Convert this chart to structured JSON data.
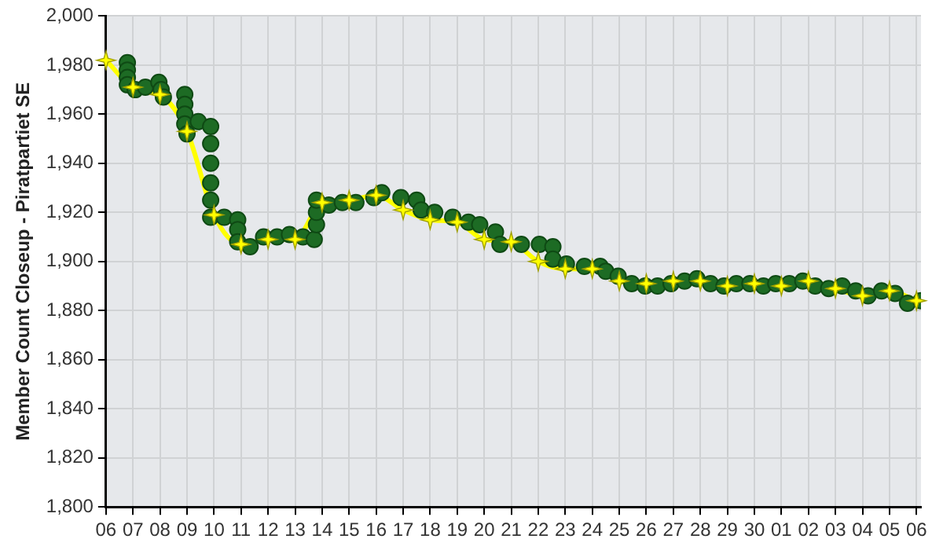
{
  "chart_data": {
    "type": "line",
    "ylabel": "Member Count Closeup - Piratpartiet SE",
    "xlim": [
      "--06-06",
      "--07-06T04:00"
    ],
    "xticks": [
      {
        "value": "--06-06",
        "label": "06"
      },
      {
        "value": "--06-07",
        "label": "07"
      },
      {
        "value": "--06-08",
        "label": "08"
      },
      {
        "value": "--06-09",
        "label": "09"
      },
      {
        "value": "--06-10",
        "label": "10"
      },
      {
        "value": "--06-11",
        "label": "11"
      },
      {
        "value": "--06-12",
        "label": "12"
      },
      {
        "value": "--06-13",
        "label": "13"
      },
      {
        "value": "--06-14",
        "label": "14"
      },
      {
        "value": "--06-15",
        "label": "15"
      },
      {
        "value": "--06-16",
        "label": "16"
      },
      {
        "value": "--06-17",
        "label": "17"
      },
      {
        "value": "--06-18",
        "label": "18"
      },
      {
        "value": "--06-19",
        "label": "19"
      },
      {
        "value": "--06-20",
        "label": "20"
      },
      {
        "value": "--06-21",
        "label": "21"
      },
      {
        "value": "--06-22",
        "label": "22"
      },
      {
        "value": "--06-23",
        "label": "23"
      },
      {
        "value": "--06-24",
        "label": "24"
      },
      {
        "value": "--06-25",
        "label": "25"
      },
      {
        "value": "--06-26",
        "label": "26"
      },
      {
        "value": "--06-27",
        "label": "27"
      },
      {
        "value": "--06-28",
        "label": "28"
      },
      {
        "value": "--06-29",
        "label": "29"
      },
      {
        "value": "--06-30",
        "label": "30"
      },
      {
        "value": "--07-01",
        "label": "01"
      },
      {
        "value": "--07-02",
        "label": "02"
      },
      {
        "value": "--07-03",
        "label": "03"
      },
      {
        "value": "--07-04",
        "label": "04"
      },
      {
        "value": "--07-05",
        "label": "05"
      },
      {
        "value": "--07-06",
        "label": "06"
      }
    ],
    "ylim": [
      1800,
      2000
    ],
    "yticks": [
      {
        "value": 1800,
        "label": "1,800"
      },
      {
        "value": 1820,
        "label": "1,820"
      },
      {
        "value": 1840,
        "label": "1,840"
      },
      {
        "value": 1860,
        "label": "1,860"
      },
      {
        "value": 1880,
        "label": "1,880"
      },
      {
        "value": 1900,
        "label": "1,900"
      },
      {
        "value": 1920,
        "label": "1,920"
      },
      {
        "value": 1940,
        "label": "1,940"
      },
      {
        "value": 1960,
        "label": "1,960"
      },
      {
        "value": 1980,
        "label": "1,980"
      },
      {
        "value": 2000,
        "label": "2,000"
      }
    ],
    "grid": true,
    "series": [
      {
        "type": "scatter",
        "marker": "circle",
        "color": "#1d6b24",
        "x": [
          "--06-06T19:00",
          "--06-06T19:00",
          "--06-06T19:00",
          "--06-06T19:00",
          "--06-07T02:00",
          "--06-07T11:00",
          "--06-07T23:00",
          "--06-08T01:00",
          "--06-08T03:00",
          "--06-08T22:00",
          "--06-08T22:00",
          "--06-08T22:00",
          "--06-08T22:00",
          "--06-09T00:00",
          "--06-09T10:00",
          "--06-09T21:00",
          "--06-09T21:00",
          "--06-09T21:00",
          "--06-09T21:00",
          "--06-09T21:00",
          "--06-09T21:00",
          "--06-10T09:00",
          "--06-10T21:00",
          "--06-10T21:00",
          "--06-10T21:00",
          "--06-11T08:00",
          "--06-11T20:00",
          "--06-12T08:00",
          "--06-12T19:00",
          "--06-13T07:00",
          "--06-13T17:00",
          "--06-13T19:00",
          "--06-13T19:00",
          "--06-13T19:00",
          "--06-14T06:00",
          "--06-14T18:00",
          "--06-15T06:00",
          "--06-15T22:00",
          "--06-16T05:00",
          "--06-16T22:00",
          "--06-17T12:00",
          "--06-17T16:00",
          "--06-18T04:00",
          "--06-18T20:00",
          "--06-19T10:00",
          "--06-19T20:00",
          "--06-20T10:00",
          "--06-20T14:00",
          "--06-21T09:00",
          "--06-22T01:00",
          "--06-22T13:00",
          "--06-22T13:00",
          "--06-23T01:00",
          "--06-23T17:00",
          "--06-24T07:00",
          "--06-24T12:00",
          "--06-24T23:00",
          "--06-25T11:00",
          "--06-25T23:00",
          "--06-26T10:00",
          "--06-26T22:00",
          "--06-27T10:00",
          "--06-27T21:00",
          "--06-28T09:00",
          "--06-28T21:00",
          "--06-29T08:00",
          "--06-29T20:00",
          "--06-30T08:00",
          "--06-30T19:00",
          "--07-01T07:00",
          "--07-01T19:00",
          "--07-02T06:00",
          "--07-02T18:00",
          "--07-03T06:00",
          "--07-03T18:00",
          "--07-04T05:00",
          "--07-04T17:00",
          "--07-05T05:00",
          "--07-05T16:00",
          "--07-06T04:00"
        ],
        "values": [
          1981,
          1978,
          1975,
          1972,
          1970,
          1971,
          1973,
          1970,
          1967,
          1968,
          1964,
          1960,
          1956,
          1952,
          1957,
          1955,
          1948,
          1940,
          1932,
          1925,
          1918,
          1918,
          1917,
          1913,
          1908,
          1906,
          1910,
          1910,
          1911,
          1910,
          1909,
          1915,
          1920,
          1925,
          1923,
          1924,
          1924,
          1926,
          1928,
          1926,
          1925,
          1921,
          1920,
          1918,
          1916,
          1915,
          1912,
          1907,
          1907,
          1907,
          1906,
          1901,
          1899,
          1898,
          1898,
          1896,
          1894,
          1891,
          1890,
          1890,
          1891,
          1892,
          1893,
          1891,
          1890,
          1891,
          1891,
          1890,
          1891,
          1891,
          1892,
          1890,
          1889,
          1890,
          1888,
          1886,
          1888,
          1887,
          1883,
          1884
        ]
      },
      {
        "marker": "star",
        "line_style": "solid",
        "color": "#ffff00",
        "x": [
          "--06-06",
          "--06-07",
          "--06-08",
          "--06-09",
          "--06-10",
          "--06-11",
          "--06-12",
          "--06-13",
          "--06-14",
          "--06-15",
          "--06-16",
          "--06-17",
          "--06-18",
          "--06-19",
          "--06-20",
          "--06-21",
          "--06-22",
          "--06-23",
          "--06-24",
          "--06-25",
          "--06-26",
          "--06-27",
          "--06-28",
          "--06-29",
          "--06-30",
          "--07-01",
          "--07-02",
          "--07-03",
          "--07-04",
          "--07-05",
          "--07-06"
        ],
        "values": [
          1982,
          1971,
          1968,
          1953,
          1919,
          1907,
          1909,
          1909,
          1924,
          1925,
          1927,
          1921,
          1917,
          1916,
          1909,
          1908,
          1900,
          1897,
          1897,
          1892,
          1891,
          1892,
          1892,
          1890,
          1891,
          1890,
          1892,
          1889,
          1886,
          1888,
          1884
        ]
      }
    ]
  }
}
